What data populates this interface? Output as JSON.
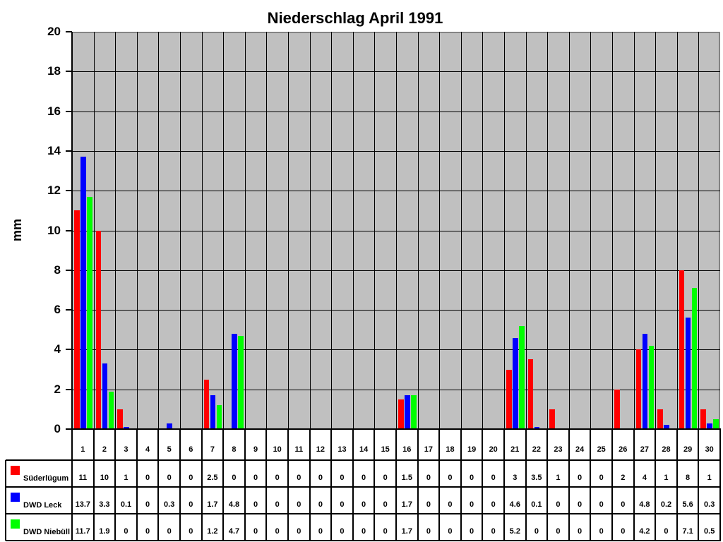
{
  "chart_data": {
    "type": "bar",
    "title": "Niederschlag April 1991",
    "ylabel": "mm",
    "xlabel": "",
    "ylim": [
      0,
      20
    ],
    "y_tick_step": 2,
    "y_ticks": [
      "0",
      "2",
      "4",
      "6",
      "8",
      "10",
      "12",
      "14",
      "16",
      "18",
      "20"
    ],
    "grid": true,
    "plot_background": "#c0c0c0",
    "gridline_color": "#000000",
    "legend_position": "table-left",
    "categories": [
      "1",
      "2",
      "3",
      "4",
      "5",
      "6",
      "7",
      "8",
      "9",
      "10",
      "11",
      "12",
      "13",
      "14",
      "15",
      "16",
      "17",
      "18",
      "19",
      "20",
      "21",
      "22",
      "23",
      "24",
      "25",
      "26",
      "27",
      "28",
      "29",
      "30"
    ],
    "series": [
      {
        "name": "Süderlügum",
        "color": "#ff0000",
        "values": [
          11,
          10,
          1,
          0,
          0,
          0,
          2.5,
          0,
          0,
          0,
          0,
          0,
          0,
          0,
          0,
          1.5,
          0,
          0,
          0,
          0,
          3,
          3.5,
          1,
          0,
          0,
          2,
          4,
          1,
          8,
          1
        ]
      },
      {
        "name": "DWD Leck",
        "color": "#0000ff",
        "values": [
          13.7,
          3.3,
          0.1,
          0,
          0.3,
          0,
          1.7,
          4.8,
          0,
          0,
          0,
          0,
          0,
          0,
          0,
          1.7,
          0,
          0,
          0,
          0,
          4.6,
          0.1,
          0,
          0,
          0,
          0,
          4.8,
          0.2,
          5.6,
          0.3
        ]
      },
      {
        "name": "DWD Niebüll",
        "color": "#00ff00",
        "values": [
          11.7,
          1.9,
          0,
          0,
          0,
          0,
          1.2,
          4.7,
          0,
          0,
          0,
          0,
          0,
          0,
          0,
          1.7,
          0,
          0,
          0,
          0,
          5.2,
          0,
          0,
          0,
          0,
          0,
          4.2,
          0,
          7.1,
          0.5
        ]
      }
    ]
  }
}
